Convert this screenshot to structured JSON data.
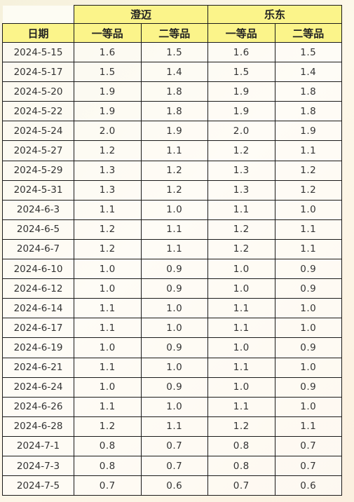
{
  "table": {
    "group_headers": [
      {
        "label": ""
      },
      {
        "label": "澄迈"
      },
      {
        "label": "乐东"
      }
    ],
    "sub_headers": [
      "日期",
      "一等品",
      "二等品",
      "一等品",
      "二等品"
    ],
    "rows": [
      [
        "2024-5-15",
        "1.6",
        "1.5",
        "1.6",
        "1.5"
      ],
      [
        "2024-5-17",
        "1.5",
        "1.4",
        "1.5",
        "1.4"
      ],
      [
        "2024-5-20",
        "1.9",
        "1.8",
        "1.9",
        "1.8"
      ],
      [
        "2024-5-22",
        "1.9",
        "1.8",
        "1.9",
        "1.8"
      ],
      [
        "2024-5-24",
        "2.0",
        "1.9",
        "2.0",
        "1.9"
      ],
      [
        "2024-5-27",
        "1.2",
        "1.1",
        "1.2",
        "1.1"
      ],
      [
        "2024-5-29",
        "1.3",
        "1.2",
        "1.3",
        "1.2"
      ],
      [
        "2024-5-31",
        "1.3",
        "1.2",
        "1.3",
        "1.2"
      ],
      [
        "2024-6-3",
        "1.1",
        "1.0",
        "1.1",
        "1.0"
      ],
      [
        "2024-6-5",
        "1.2",
        "1.1",
        "1.2",
        "1.1"
      ],
      [
        "2024-6-7",
        "1.2",
        "1.1",
        "1.2",
        "1.1"
      ],
      [
        "2024-6-10",
        "1.0",
        "0.9",
        "1.0",
        "0.9"
      ],
      [
        "2024-6-12",
        "1.0",
        "0.9",
        "1.0",
        "0.9"
      ],
      [
        "2024-6-14",
        "1.1",
        "1.0",
        "1.1",
        "1.0"
      ],
      [
        "2024-6-17",
        "1.1",
        "1.0",
        "1.1",
        "1.0"
      ],
      [
        "2024-6-19",
        "1.0",
        "0.9",
        "1.0",
        "0.9"
      ],
      [
        "2024-6-21",
        "1.1",
        "1.0",
        "1.1",
        "1.0"
      ],
      [
        "2024-6-24",
        "1.0",
        "0.9",
        "1.0",
        "0.9"
      ],
      [
        "2024-6-26",
        "1.1",
        "1.0",
        "1.1",
        "1.0"
      ],
      [
        "2024-6-28",
        "1.2",
        "1.1",
        "1.2",
        "1.1"
      ],
      [
        "2024-7-1",
        "0.8",
        "0.7",
        "0.8",
        "0.7"
      ],
      [
        "2024-7-3",
        "0.8",
        "0.7",
        "0.8",
        "0.7"
      ],
      [
        "2024-7-5",
        "0.7",
        "0.6",
        "0.7",
        "0.6"
      ]
    ]
  },
  "colors": {
    "header_fill": "#fbf48a",
    "background": "#f8f2df",
    "grid": "#1a1a1a"
  }
}
